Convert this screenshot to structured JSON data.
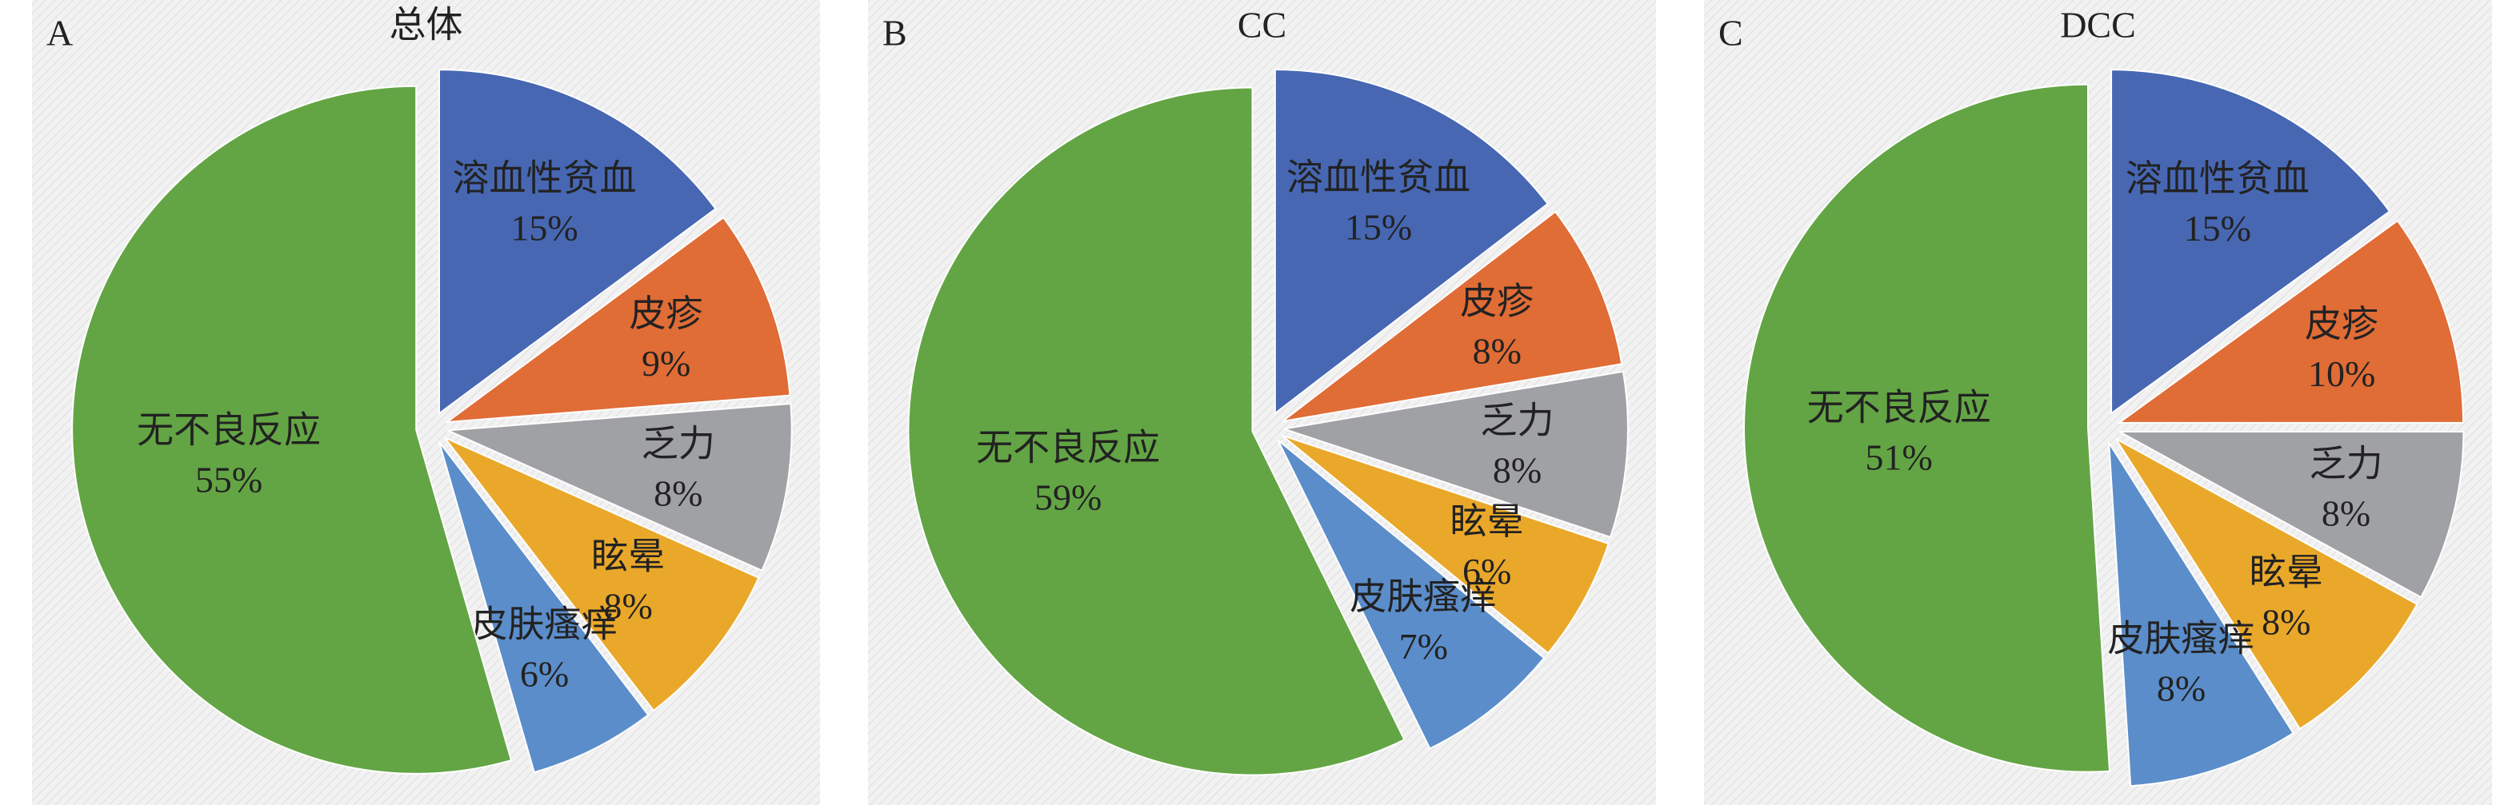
{
  "chart_data": [
    {
      "type": "pie",
      "panel_label": "A",
      "title": "总体",
      "categories": [
        "溶血性贫血",
        "皮疹",
        "乏力",
        "眩晕",
        "皮肤瘙痒",
        "无不良反应"
      ],
      "values": [
        15,
        9,
        8,
        8,
        6,
        55
      ],
      "value_labels": [
        "15%",
        "9%",
        "8%",
        "8%",
        "6%",
        "55%"
      ],
      "colors": [
        "#4767b3",
        "#e06c36",
        "#a0a1a5",
        "#eaa82a",
        "#5b8dca",
        "#63a544"
      ]
    },
    {
      "type": "pie",
      "panel_label": "B",
      "title": "CC",
      "categories": [
        "溶血性贫血",
        "皮疹",
        "乏力",
        "眩晕",
        "皮肤瘙痒",
        "无不良反应"
      ],
      "values": [
        15,
        8,
        8,
        6,
        7,
        59
      ],
      "value_labels": [
        "15%",
        "8%",
        "8%",
        "6%",
        "7%",
        "59%"
      ],
      "colors": [
        "#4767b3",
        "#e06c36",
        "#a0a1a5",
        "#eaa82a",
        "#5b8dca",
        "#63a544"
      ]
    },
    {
      "type": "pie",
      "panel_label": "C",
      "title": "DCC",
      "categories": [
        "溶血性贫血",
        "皮疹",
        "乏力",
        "眩晕",
        "皮肤瘙痒",
        "无不良反应"
      ],
      "values": [
        15,
        10,
        8,
        8,
        8,
        51
      ],
      "value_labels": [
        "15%",
        "10%",
        "8%",
        "8%",
        "8%",
        "51%"
      ],
      "colors": [
        "#4767b3",
        "#e06c36",
        "#a0a1a5",
        "#eaa82a",
        "#5b8dca",
        "#63a544"
      ]
    }
  ]
}
